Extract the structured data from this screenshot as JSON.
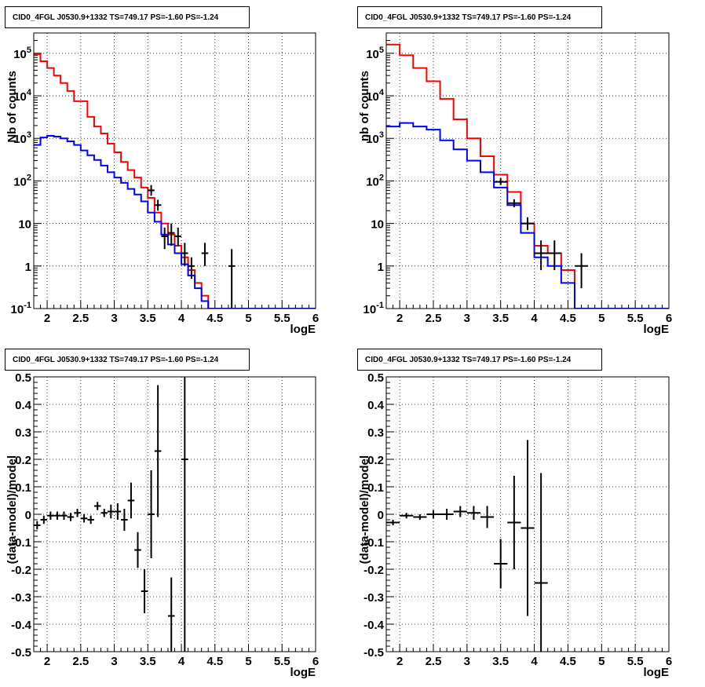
{
  "chart_data": [
    {
      "type": "line",
      "title": "CID0_4FGL J0530.9+1332 TS=749.17 PS=-1.60 PS=-1.24",
      "xlabel": "logE",
      "ylabel": "Nb of counts",
      "xlim": [
        1.8,
        6.0
      ],
      "ylim": [
        0.1,
        300000
      ],
      "yscale": "log",
      "grid": true,
      "x_ticks": [
        "2",
        "2.5",
        "3",
        "3.5",
        "4",
        "4.5",
        "5",
        "5.5",
        "6"
      ],
      "y_ticks": [
        "10^-1",
        "1",
        "10",
        "10^2",
        "10^3",
        "10^4",
        "10^5"
      ],
      "bin_edges": [
        1.8,
        1.9,
        2.0,
        2.1,
        2.2,
        2.3,
        2.4,
        2.5,
        2.6,
        2.7,
        2.8,
        2.9,
        3.0,
        3.1,
        3.2,
        3.3,
        3.4,
        3.5,
        3.6,
        3.7,
        3.8,
        3.9,
        4.0,
        4.1,
        4.2,
        4.3,
        4.4,
        4.5,
        4.6,
        4.7,
        4.8,
        4.9,
        5.0,
        5.1,
        5.2,
        5.3,
        5.4,
        5.5,
        5.6,
        5.7,
        5.8,
        5.9,
        6.0
      ],
      "series": [
        {
          "color": "#ff0000",
          "values": [
            95000,
            65000,
            45000,
            30000,
            20000,
            13000,
            7500,
            7500,
            3200,
            1900,
            1300,
            750,
            470,
            280,
            180,
            120,
            70,
            40,
            18,
            10,
            5.5,
            3,
            1.6,
            0.8,
            0.4,
            0.2,
            0.1,
            0.1,
            0.1,
            0.1,
            0.1,
            0.1,
            0.1,
            0.1,
            0.1,
            0.1,
            0.1,
            0.1,
            0.1,
            0.1,
            0.1,
            0.1
          ]
        },
        {
          "color": "#0000ff",
          "values": [
            700,
            1050,
            1150,
            1100,
            1000,
            850,
            700,
            520,
            400,
            310,
            230,
            160,
            120,
            90,
            65,
            48,
            33,
            18,
            11,
            5.5,
            3.2,
            2,
            1.1,
            0.6,
            0.3,
            0.15,
            0.1,
            0.1,
            0.1,
            0.1,
            0.1,
            0.1,
            0.1,
            0.1,
            0.1,
            0.1,
            0.1,
            0.1,
            0.1,
            0.1,
            0.1,
            0.1
          ]
        }
      ],
      "data_points": [
        {
          "x": 3.55,
          "y": 60,
          "ylo": 45,
          "yhi": 80
        },
        {
          "x": 3.65,
          "y": 27,
          "ylo": 20,
          "yhi": 36
        },
        {
          "x": 3.75,
          "y": 5,
          "ylo": 2.5,
          "yhi": 8
        },
        {
          "x": 3.85,
          "y": 6,
          "ylo": 3,
          "yhi": 10
        },
        {
          "x": 3.95,
          "y": 5,
          "ylo": 3,
          "yhi": 8
        },
        {
          "x": 4.05,
          "y": 2,
          "ylo": 1,
          "yhi": 3.5
        },
        {
          "x": 4.15,
          "y": 1,
          "ylo": 0.5,
          "yhi": 1.6
        },
        {
          "x": 4.35,
          "y": 2,
          "ylo": 1,
          "yhi": 3.5
        },
        {
          "x": 4.75,
          "y": 1,
          "ylo": 0.1,
          "yhi": 2.5
        }
      ]
    },
    {
      "type": "line",
      "title": "CID0_4FGL J0530.9+1332 TS=749.17 PS=-1.60 PS=-1.24",
      "xlabel": "logE",
      "ylabel": "nb of counts",
      "xlim": [
        1.8,
        6.0
      ],
      "ylim": [
        0.1,
        300000
      ],
      "yscale": "log",
      "grid": true,
      "x_ticks": [
        "2",
        "2.5",
        "3",
        "3.5",
        "4",
        "4.5",
        "5",
        "5.5",
        "6"
      ],
      "y_ticks": [
        "10^-1",
        "1",
        "10",
        "10^2",
        "10^3",
        "10^4",
        "10^5"
      ],
      "bin_edges": [
        1.8,
        2.0,
        2.2,
        2.4,
        2.6,
        2.8,
        3.0,
        3.2,
        3.4,
        3.6,
        3.8,
        4.0,
        4.2,
        4.4,
        4.6,
        4.8,
        5.0,
        5.2,
        5.4,
        5.6,
        5.8,
        6.0
      ],
      "series": [
        {
          "color": "#ff0000",
          "values": [
            160000,
            90000,
            45000,
            22000,
            8500,
            2800,
            1000,
            380,
            140,
            55,
            10,
            3,
            2,
            0.8,
            0.1,
            0.1,
            0.1,
            0.1,
            0.1,
            0.1,
            0.1
          ]
        },
        {
          "color": "#0000ff",
          "values": [
            1900,
            2300,
            1900,
            1600,
            900,
            550,
            300,
            160,
            70,
            27,
            6,
            1.6,
            1,
            0.4,
            0.1,
            0.1,
            0.1,
            0.1,
            0.1,
            0.1,
            0.1
          ]
        }
      ],
      "data_points": [
        {
          "x": 3.5,
          "y": 95,
          "ylo": 80,
          "yhi": 115
        },
        {
          "x": 3.7,
          "y": 30,
          "ylo": 24,
          "yhi": 37
        },
        {
          "x": 3.9,
          "y": 10,
          "ylo": 7,
          "yhi": 14
        },
        {
          "x": 4.1,
          "y": 2,
          "ylo": 0.8,
          "yhi": 4
        },
        {
          "x": 4.3,
          "y": 2,
          "ylo": 0.8,
          "yhi": 4
        },
        {
          "x": 4.7,
          "y": 1,
          "ylo": 0.3,
          "yhi": 2
        }
      ]
    },
    {
      "type": "scatter",
      "title": "CID0_4FGL J0530.9+1332 TS=749.17 PS=-1.60 PS=-1.24",
      "xlabel": "logE",
      "ylabel": "(data-model)/model",
      "xlim": [
        1.8,
        6.0
      ],
      "ylim": [
        -0.5,
        0.5
      ],
      "grid": true,
      "x_ticks": [
        "2",
        "2.5",
        "3",
        "3.5",
        "4",
        "4.5",
        "5",
        "5.5",
        "6"
      ],
      "y_ticks": [
        "-0.5",
        "-0.4",
        "-0.3",
        "-0.2",
        "-0.1",
        "0",
        "0.1",
        "0.2",
        "0.3",
        "0.4",
        "0.5"
      ],
      "y_tick_values": [
        -0.5,
        -0.4,
        -0.3,
        -0.2,
        -0.1,
        0,
        0.1,
        0.2,
        0.3,
        0.4,
        0.5
      ],
      "x_err": 0.05,
      "points": [
        {
          "x": 1.85,
          "y": -0.04,
          "err": 0.015
        },
        {
          "x": 1.95,
          "y": -0.02,
          "err": 0.015
        },
        {
          "x": 2.05,
          "y": -0.005,
          "err": 0.015
        },
        {
          "x": 2.15,
          "y": -0.005,
          "err": 0.015
        },
        {
          "x": 2.25,
          "y": -0.005,
          "err": 0.015
        },
        {
          "x": 2.35,
          "y": -0.01,
          "err": 0.015
        },
        {
          "x": 2.45,
          "y": 0.005,
          "err": 0.015
        },
        {
          "x": 2.55,
          "y": -0.015,
          "err": 0.015
        },
        {
          "x": 2.65,
          "y": -0.02,
          "err": 0.015
        },
        {
          "x": 2.75,
          "y": 0.03,
          "err": 0.015
        },
        {
          "x": 2.85,
          "y": 0.005,
          "err": 0.015
        },
        {
          "x": 2.95,
          "y": 0.01,
          "err": 0.025
        },
        {
          "x": 3.05,
          "y": 0.01,
          "err": 0.03
        },
        {
          "x": 3.15,
          "y": -0.02,
          "err": 0.04
        },
        {
          "x": 3.25,
          "y": 0.05,
          "err": 0.065
        },
        {
          "x": 3.35,
          "y": -0.13,
          "err": 0.065
        },
        {
          "x": 3.45,
          "y": -0.28,
          "err": 0.08
        },
        {
          "x": 3.55,
          "y": 0.0,
          "err": 0.16
        },
        {
          "x": 3.65,
          "y": 0.23,
          "err": 0.24
        },
        {
          "x": 3.85,
          "y": -0.37,
          "err": 0.14
        },
        {
          "x": 4.05,
          "y": 0.2,
          "err": 0.7
        }
      ]
    },
    {
      "type": "scatter",
      "title": "CID0_4FGL J0530.9+1332 TS=749.17 PS=-1.60 PS=-1.24",
      "xlabel": "logE",
      "ylabel": "(data-model)/model",
      "xlim": [
        1.8,
        6.0
      ],
      "ylim": [
        -0.5,
        0.5
      ],
      "grid": true,
      "x_ticks": [
        "2",
        "2.5",
        "3",
        "3.5",
        "4",
        "4.5",
        "5",
        "5.5",
        "6"
      ],
      "y_ticks": [
        "-0.5",
        "-0.4",
        "-0.3",
        "-0.2",
        "-0.1",
        "0",
        "0.1",
        "0.2",
        "0.3",
        "0.4",
        "0.5"
      ],
      "y_tick_values": [
        -0.5,
        -0.4,
        -0.3,
        -0.2,
        -0.1,
        0,
        0.1,
        0.2,
        0.3,
        0.4,
        0.5
      ],
      "x_err": 0.1,
      "points": [
        {
          "x": 1.9,
          "y": -0.03,
          "err": 0.01
        },
        {
          "x": 2.1,
          "y": -0.005,
          "err": 0.01
        },
        {
          "x": 2.3,
          "y": -0.01,
          "err": 0.01
        },
        {
          "x": 2.5,
          "y": 0.0,
          "err": 0.015
        },
        {
          "x": 2.7,
          "y": 0.0,
          "err": 0.02
        },
        {
          "x": 2.9,
          "y": 0.01,
          "err": 0.02
        },
        {
          "x": 3.1,
          "y": 0.005,
          "err": 0.025
        },
        {
          "x": 3.3,
          "y": -0.01,
          "err": 0.04
        },
        {
          "x": 3.5,
          "y": -0.18,
          "err": 0.09
        },
        {
          "x": 3.7,
          "y": -0.03,
          "err": 0.17
        },
        {
          "x": 3.9,
          "y": -0.05,
          "err": 0.32
        },
        {
          "x": 4.1,
          "y": -0.25,
          "err": 0.4
        }
      ]
    }
  ]
}
